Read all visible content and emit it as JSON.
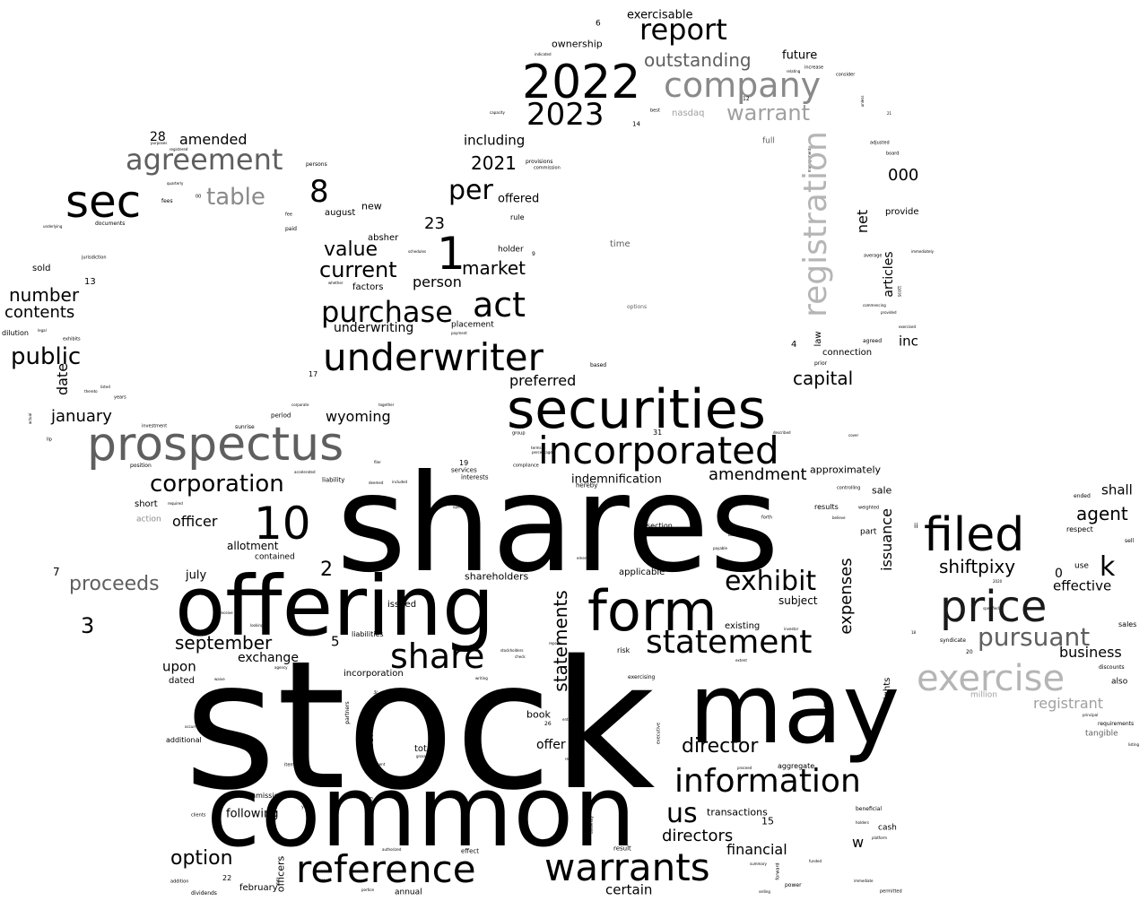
{
  "words": [
    {
      "text": "stock",
      "color": "#000000"
    },
    {
      "text": "shares",
      "color": "#000000"
    },
    {
      "text": "common",
      "color": "#000000"
    },
    {
      "text": "offering",
      "color": "#000000"
    },
    {
      "text": "may",
      "color": "#000000"
    },
    {
      "text": "securities",
      "color": "#000000"
    },
    {
      "text": "form",
      "color": "#000000"
    },
    {
      "text": "filed",
      "color": "#000000"
    },
    {
      "text": "price",
      "color": "#1a1a1a"
    },
    {
      "text": "prospectus",
      "color": "#5f5f5f"
    },
    {
      "text": "underwriter",
      "color": "#000000"
    },
    {
      "text": "incorporated",
      "color": "#000000"
    },
    {
      "text": "reference",
      "color": "#000000"
    },
    {
      "text": "warrants",
      "color": "#000000"
    },
    {
      "text": "2022",
      "color": "#000000"
    },
    {
      "text": "sec",
      "color": "#000000"
    },
    {
      "text": "exercise",
      "color": "#b5b5b5"
    },
    {
      "text": "information",
      "color": "#000000"
    },
    {
      "text": "company",
      "color": "#8a8a8a"
    },
    {
      "text": "statement",
      "color": "#000000"
    },
    {
      "text": "share",
      "color": "#000000"
    },
    {
      "text": "act",
      "color": "#000000"
    },
    {
      "text": "10",
      "color": "#000000"
    },
    {
      "text": "1",
      "color": "#000000"
    },
    {
      "text": "purchase",
      "color": "#000000"
    },
    {
      "text": "agreement",
      "color": "#5f5f5f"
    },
    {
      "text": "2023",
      "color": "#000000"
    },
    {
      "text": "report",
      "color": "#000000"
    },
    {
      "text": "exhibit",
      "color": "#000000"
    },
    {
      "text": "pursuant",
      "color": "#5f5f5f"
    },
    {
      "text": "corporation",
      "color": "#000000"
    },
    {
      "text": "us",
      "color": "#000000"
    },
    {
      "text": "8",
      "color": "#000000"
    },
    {
      "text": "per",
      "color": "#000000"
    },
    {
      "text": "shiftpixy",
      "color": "#000000"
    },
    {
      "text": "table",
      "color": "#8a8a8a"
    },
    {
      "text": "warrant",
      "color": "#a0a0a0"
    },
    {
      "text": "public",
      "color": "#000000"
    },
    {
      "text": "current",
      "color": "#000000"
    },
    {
      "text": "value",
      "color": "#000000"
    },
    {
      "text": "director",
      "color": "#000000"
    },
    {
      "text": "option",
      "color": "#000000"
    },
    {
      "text": "amendment",
      "color": "#000000"
    },
    {
      "text": "agent",
      "color": "#000000"
    },
    {
      "text": "market",
      "color": "#000000"
    },
    {
      "text": "september",
      "color": "#000000"
    },
    {
      "text": "outstanding",
      "color": "#5f5f5f"
    },
    {
      "text": "directors",
      "color": "#000000"
    },
    {
      "text": "number",
      "color": "#000000"
    },
    {
      "text": "contents",
      "color": "#000000"
    },
    {
      "text": "proceeds",
      "color": "#5f5f5f"
    },
    {
      "text": "capital",
      "color": "#000000"
    },
    {
      "text": "business",
      "color": "#000000"
    },
    {
      "text": "financial",
      "color": "#000000"
    },
    {
      "text": "registrant",
      "color": "#a0a0a0"
    },
    {
      "text": "january",
      "color": "#000000"
    },
    {
      "text": "2021",
      "color": "#000000"
    },
    {
      "text": "effective",
      "color": "#000000"
    },
    {
      "text": "wyoming",
      "color": "#000000"
    },
    {
      "text": "officer",
      "color": "#000000"
    },
    {
      "text": "000",
      "color": "#000000"
    },
    {
      "text": "certain",
      "color": "#000000"
    },
    {
      "text": "person",
      "color": "#000000"
    },
    {
      "text": "preferred",
      "color": "#000000"
    },
    {
      "text": "upon",
      "color": "#000000"
    },
    {
      "text": "shall",
      "color": "#000000"
    },
    {
      "text": "including",
      "color": "#000000"
    },
    {
      "text": "amended",
      "color": "#000000"
    },
    {
      "text": "underwriting",
      "color": "#000000"
    },
    {
      "text": "exchange",
      "color": "#000000"
    },
    {
      "text": "indemnification",
      "color": "#000000"
    },
    {
      "text": "inc",
      "color": "#000000"
    },
    {
      "text": "offer",
      "color": "#000000"
    },
    {
      "text": "following",
      "color": "#000000"
    },
    {
      "text": "23",
      "color": "#000000"
    },
    {
      "text": "3",
      "color": "#000000"
    },
    {
      "text": "2",
      "color": "#000000"
    },
    {
      "text": "5",
      "color": "#000000"
    },
    {
      "text": "28",
      "color": "#000000"
    },
    {
      "text": "exercisable",
      "color": "#000000"
    },
    {
      "text": "future",
      "color": "#000000"
    },
    {
      "text": "ownership",
      "color": "#000000"
    },
    {
      "text": "offered",
      "color": "#000000"
    },
    {
      "text": "approximately",
      "color": "#000000"
    },
    {
      "text": "subject",
      "color": "#000000"
    },
    {
      "text": "allotment",
      "color": "#000000"
    },
    {
      "text": "shareholders",
      "color": "#000000"
    },
    {
      "text": "applicable",
      "color": "#000000"
    },
    {
      "text": "july",
      "color": "#000000"
    },
    {
      "text": "book",
      "color": "#000000"
    },
    {
      "text": "transactions",
      "color": "#000000"
    },
    {
      "text": "sale",
      "color": "#000000"
    },
    {
      "text": "provide",
      "color": "#000000"
    },
    {
      "text": "connection",
      "color": "#000000"
    },
    {
      "text": "total",
      "color": "#000000"
    },
    {
      "text": "february",
      "color": "#000000"
    },
    {
      "text": "issued",
      "color": "#000000"
    },
    {
      "text": "incorporation",
      "color": "#000000"
    },
    {
      "text": "dated",
      "color": "#000000"
    },
    {
      "text": "existing",
      "color": "#000000"
    },
    {
      "text": "aggregate",
      "color": "#000000"
    },
    {
      "text": "cash",
      "color": "#000000"
    },
    {
      "text": "new",
      "color": "#000000"
    },
    {
      "text": "august",
      "color": "#000000"
    },
    {
      "text": "absher",
      "color": "#000000"
    },
    {
      "text": "factors",
      "color": "#000000"
    },
    {
      "text": "holder",
      "color": "#000000"
    },
    {
      "text": "placement",
      "color": "#000000"
    },
    {
      "text": "rule",
      "color": "#000000"
    },
    {
      "text": "contained",
      "color": "#000000"
    },
    {
      "text": "nasdaq",
      "color": "#a0a0a0"
    },
    {
      "text": "full",
      "color": "#5f5f5f"
    },
    {
      "text": "time",
      "color": "#5f5f5f"
    },
    {
      "text": "sold",
      "color": "#000000"
    },
    {
      "text": "dilution",
      "color": "#000000"
    },
    {
      "text": "annual",
      "color": "#000000"
    },
    {
      "text": "additional",
      "color": "#000000"
    },
    {
      "text": "commissions",
      "color": "#000000"
    },
    {
      "text": "liabilities",
      "color": "#000000"
    },
    {
      "text": "risk",
      "color": "#000000"
    },
    {
      "text": "section",
      "color": "#000000"
    },
    {
      "text": "results",
      "color": "#000000"
    },
    {
      "text": "part",
      "color": "#000000"
    },
    {
      "text": "respect",
      "color": "#000000"
    },
    {
      "text": "use",
      "color": "#000000"
    },
    {
      "text": "also",
      "color": "#000000"
    },
    {
      "text": "sales",
      "color": "#000000"
    },
    {
      "text": "sell",
      "color": "#000000"
    },
    {
      "text": "ended",
      "color": "#000000"
    },
    {
      "text": "million",
      "color": "#a0a0a0"
    },
    {
      "text": "tangible",
      "color": "#5f5f5f"
    },
    {
      "text": "syndicate",
      "color": "#000000"
    },
    {
      "text": "discounts",
      "color": "#000000"
    },
    {
      "text": "requirements",
      "color": "#000000"
    },
    {
      "text": "short",
      "color": "#000000"
    },
    {
      "text": "action",
      "color": "#8a8a8a"
    },
    {
      "text": "position",
      "color": "#000000"
    },
    {
      "text": "investment",
      "color": "#000000"
    },
    {
      "text": "sunrise",
      "color": "#000000"
    },
    {
      "text": "period",
      "color": "#000000"
    },
    {
      "text": "liability",
      "color": "#000000"
    },
    {
      "text": "services",
      "color": "#000000"
    },
    {
      "text": "interests",
      "color": "#000000"
    },
    {
      "text": "exercising",
      "color": "#000000"
    },
    {
      "text": "effect",
      "color": "#000000"
    },
    {
      "text": "result",
      "color": "#000000"
    },
    {
      "text": "power",
      "color": "#000000"
    },
    {
      "text": "dividends",
      "color": "#000000"
    },
    {
      "text": "addition",
      "color": "#000000"
    },
    {
      "text": "fees",
      "color": "#000000"
    },
    {
      "text": "paid",
      "color": "#000000"
    },
    {
      "text": "documents",
      "color": "#000000"
    },
    {
      "text": "persons",
      "color": "#000000"
    },
    {
      "text": "jurisdiction",
      "color": "#000000"
    },
    {
      "text": "exhibits",
      "color": "#000000"
    },
    {
      "text": "years",
      "color": "#000000"
    },
    {
      "text": "llp",
      "color": "#000000"
    },
    {
      "text": "provisions",
      "color": "#000000"
    },
    {
      "text": "commission",
      "color": "#000000"
    },
    {
      "text": "board",
      "color": "#000000"
    },
    {
      "text": "adjusted",
      "color": "#000000"
    },
    {
      "text": "increase",
      "color": "#000000"
    },
    {
      "text": "consider",
      "color": "#000000"
    },
    {
      "text": "immediately",
      "color": "#000000"
    },
    {
      "text": "average",
      "color": "#000000"
    },
    {
      "text": "agreed",
      "color": "#000000"
    },
    {
      "text": "prior",
      "color": "#000000"
    },
    {
      "text": "based",
      "color": "#000000"
    },
    {
      "text": "options",
      "color": "#5f5f5f"
    },
    {
      "text": "hereby",
      "color": "#000000"
    },
    {
      "text": "compliance",
      "color": "#000000"
    },
    {
      "text": "group",
      "color": "#000000"
    },
    {
      "text": "weighted",
      "color": "#000000"
    },
    {
      "text": "controlling",
      "color": "#000000"
    },
    {
      "text": "believe",
      "color": "#000000"
    },
    {
      "text": "forth",
      "color": "#000000"
    },
    {
      "text": "payable",
      "color": "#000000"
    },
    {
      "text": "investor",
      "color": "#000000"
    },
    {
      "text": "beneficial",
      "color": "#000000"
    },
    {
      "text": "holders",
      "color": "#000000"
    },
    {
      "text": "funded",
      "color": "#000000"
    },
    {
      "text": "permitted",
      "color": "#000000"
    },
    {
      "text": "item",
      "color": "#000000"
    },
    {
      "text": "year",
      "color": "#000000"
    },
    {
      "text": "clients",
      "color": "#000000"
    },
    {
      "text": "authorized",
      "color": "#000000"
    },
    {
      "text": "partners",
      "color": "#000000"
    },
    {
      "text": "looking",
      "color": "#000000"
    },
    {
      "text": "issuable",
      "color": "#000000"
    },
    {
      "text": "entitled",
      "color": "#000000"
    },
    {
      "text": "regarding",
      "color": "#000000"
    },
    {
      "text": "employment",
      "color": "#000000"
    },
    {
      "text": "gross",
      "color": "#000000"
    },
    {
      "text": "together",
      "color": "#000000"
    },
    {
      "text": "corporate",
      "color": "#000000"
    },
    {
      "text": "accelerated",
      "color": "#000000"
    },
    {
      "text": "required",
      "color": "#000000"
    },
    {
      "text": "deemed",
      "color": "#000000"
    },
    {
      "text": "included",
      "color": "#000000"
    },
    {
      "text": "filer",
      "color": "#000000"
    },
    {
      "text": "terms",
      "color": "#000000"
    },
    {
      "text": "percentage",
      "color": "#000000"
    },
    {
      "text": "whether",
      "color": "#000000"
    },
    {
      "text": "payment",
      "color": "#000000"
    },
    {
      "text": "schedules",
      "color": "#000000"
    },
    {
      "text": "best",
      "color": "#000000"
    },
    {
      "text": "capacity",
      "color": "#000000"
    },
    {
      "text": "indicated",
      "color": "#000000"
    },
    {
      "text": "management",
      "color": "#000000"
    },
    {
      "text": "relating",
      "color": "#000000"
    },
    {
      "text": "unless",
      "color": "#000000"
    },
    {
      "text": "commencing",
      "color": "#000000"
    },
    {
      "text": "provided",
      "color": "#000000"
    },
    {
      "text": "exercised",
      "color": "#000000"
    },
    {
      "text": "scott",
      "color": "#000000"
    },
    {
      "text": "described",
      "color": "#000000"
    },
    {
      "text": "cover",
      "color": "#000000"
    },
    {
      "text": "emerging",
      "color": "#000000"
    },
    {
      "text": "operations",
      "color": "#000000"
    },
    {
      "text": "reports",
      "color": "#000000"
    },
    {
      "text": "check",
      "color": "#000000"
    },
    {
      "text": "stockholders",
      "color": "#000000"
    },
    {
      "text": "writing",
      "color": "#000000"
    },
    {
      "text": "extent",
      "color": "#000000"
    },
    {
      "text": "executive",
      "color": "#000000"
    },
    {
      "text": "proceed",
      "color": "#000000"
    },
    {
      "text": "platform",
      "color": "#000000"
    },
    {
      "text": "principal",
      "color": "#000000"
    },
    {
      "text": "listing",
      "color": "#000000"
    },
    {
      "text": "specified",
      "color": "#000000"
    },
    {
      "text": "selling",
      "color": "#000000"
    },
    {
      "text": "summary",
      "color": "#000000"
    },
    {
      "text": "agency",
      "color": "#000000"
    },
    {
      "text": "basis",
      "color": "#000000"
    },
    {
      "text": "quarterly",
      "color": "#000000"
    },
    {
      "text": "fee",
      "color": "#000000"
    },
    {
      "text": "purposes",
      "color": "#000000"
    },
    {
      "text": "registered",
      "color": "#000000"
    },
    {
      "text": "underlying",
      "color": "#000000"
    },
    {
      "text": "actual",
      "color": "#000000"
    },
    {
      "text": "thereto",
      "color": "#000000"
    },
    {
      "text": "listed",
      "color": "#000000"
    },
    {
      "text": "legal",
      "color": "#000000"
    },
    {
      "text": "fiscal",
      "color": "#000000"
    },
    {
      "text": "receive",
      "color": "#000000"
    },
    {
      "text": "occurred",
      "color": "#000000"
    },
    {
      "text": "growth",
      "color": "#000000"
    },
    {
      "text": "waive",
      "color": "#000000"
    },
    {
      "text": "university",
      "color": "#000000"
    },
    {
      "text": "forward",
      "color": "#000000"
    },
    {
      "text": "immediate",
      "color": "#000000"
    },
    {
      "text": "portion",
      "color": "#000000"
    },
    {
      "text": "registration",
      "color": "#b5b5b5"
    },
    {
      "text": "statements",
      "color": "#000000"
    },
    {
      "text": "expenses",
      "color": "#000000"
    },
    {
      "text": "issuance",
      "color": "#000000"
    },
    {
      "text": "net",
      "color": "#000000"
    },
    {
      "text": "articles",
      "color": "#000000"
    },
    {
      "text": "law",
      "color": "#000000"
    },
    {
      "text": "rights",
      "color": "#000000"
    },
    {
      "text": "date",
      "color": "#000000"
    },
    {
      "text": "otherwise",
      "color": "#000000"
    },
    {
      "text": "officers",
      "color": "#000000"
    },
    {
      "text": "k",
      "color": "#000000"
    },
    {
      "text": "w",
      "color": "#000000"
    },
    {
      "text": "b",
      "color": "#000000"
    },
    {
      "text": "ii",
      "color": "#000000"
    },
    {
      "text": "6",
      "color": "#000000"
    },
    {
      "text": "13",
      "color": "#000000"
    },
    {
      "text": "7",
      "color": "#000000"
    },
    {
      "text": "4",
      "color": "#000000"
    },
    {
      "text": "0",
      "color": "#000000"
    },
    {
      "text": "15",
      "color": "#000000"
    },
    {
      "text": "17",
      "color": "#000000"
    },
    {
      "text": "19",
      "color": "#000000"
    },
    {
      "text": "22",
      "color": "#000000"
    },
    {
      "text": "31",
      "color": "#000000"
    },
    {
      "text": "14",
      "color": "#000000"
    },
    {
      "text": "12",
      "color": "#000000"
    },
    {
      "text": "9",
      "color": "#000000"
    },
    {
      "text": "26",
      "color": "#000000"
    },
    {
      "text": "20",
      "color": "#000000"
    },
    {
      "text": "00",
      "color": "#000000"
    },
    {
      "text": "2020",
      "color": "#000000"
    },
    {
      "text": "1933",
      "color": "#000000"
    },
    {
      "text": "18",
      "color": "#000000"
    },
    {
      "text": "21",
      "color": "#000000"
    }
  ]
}
